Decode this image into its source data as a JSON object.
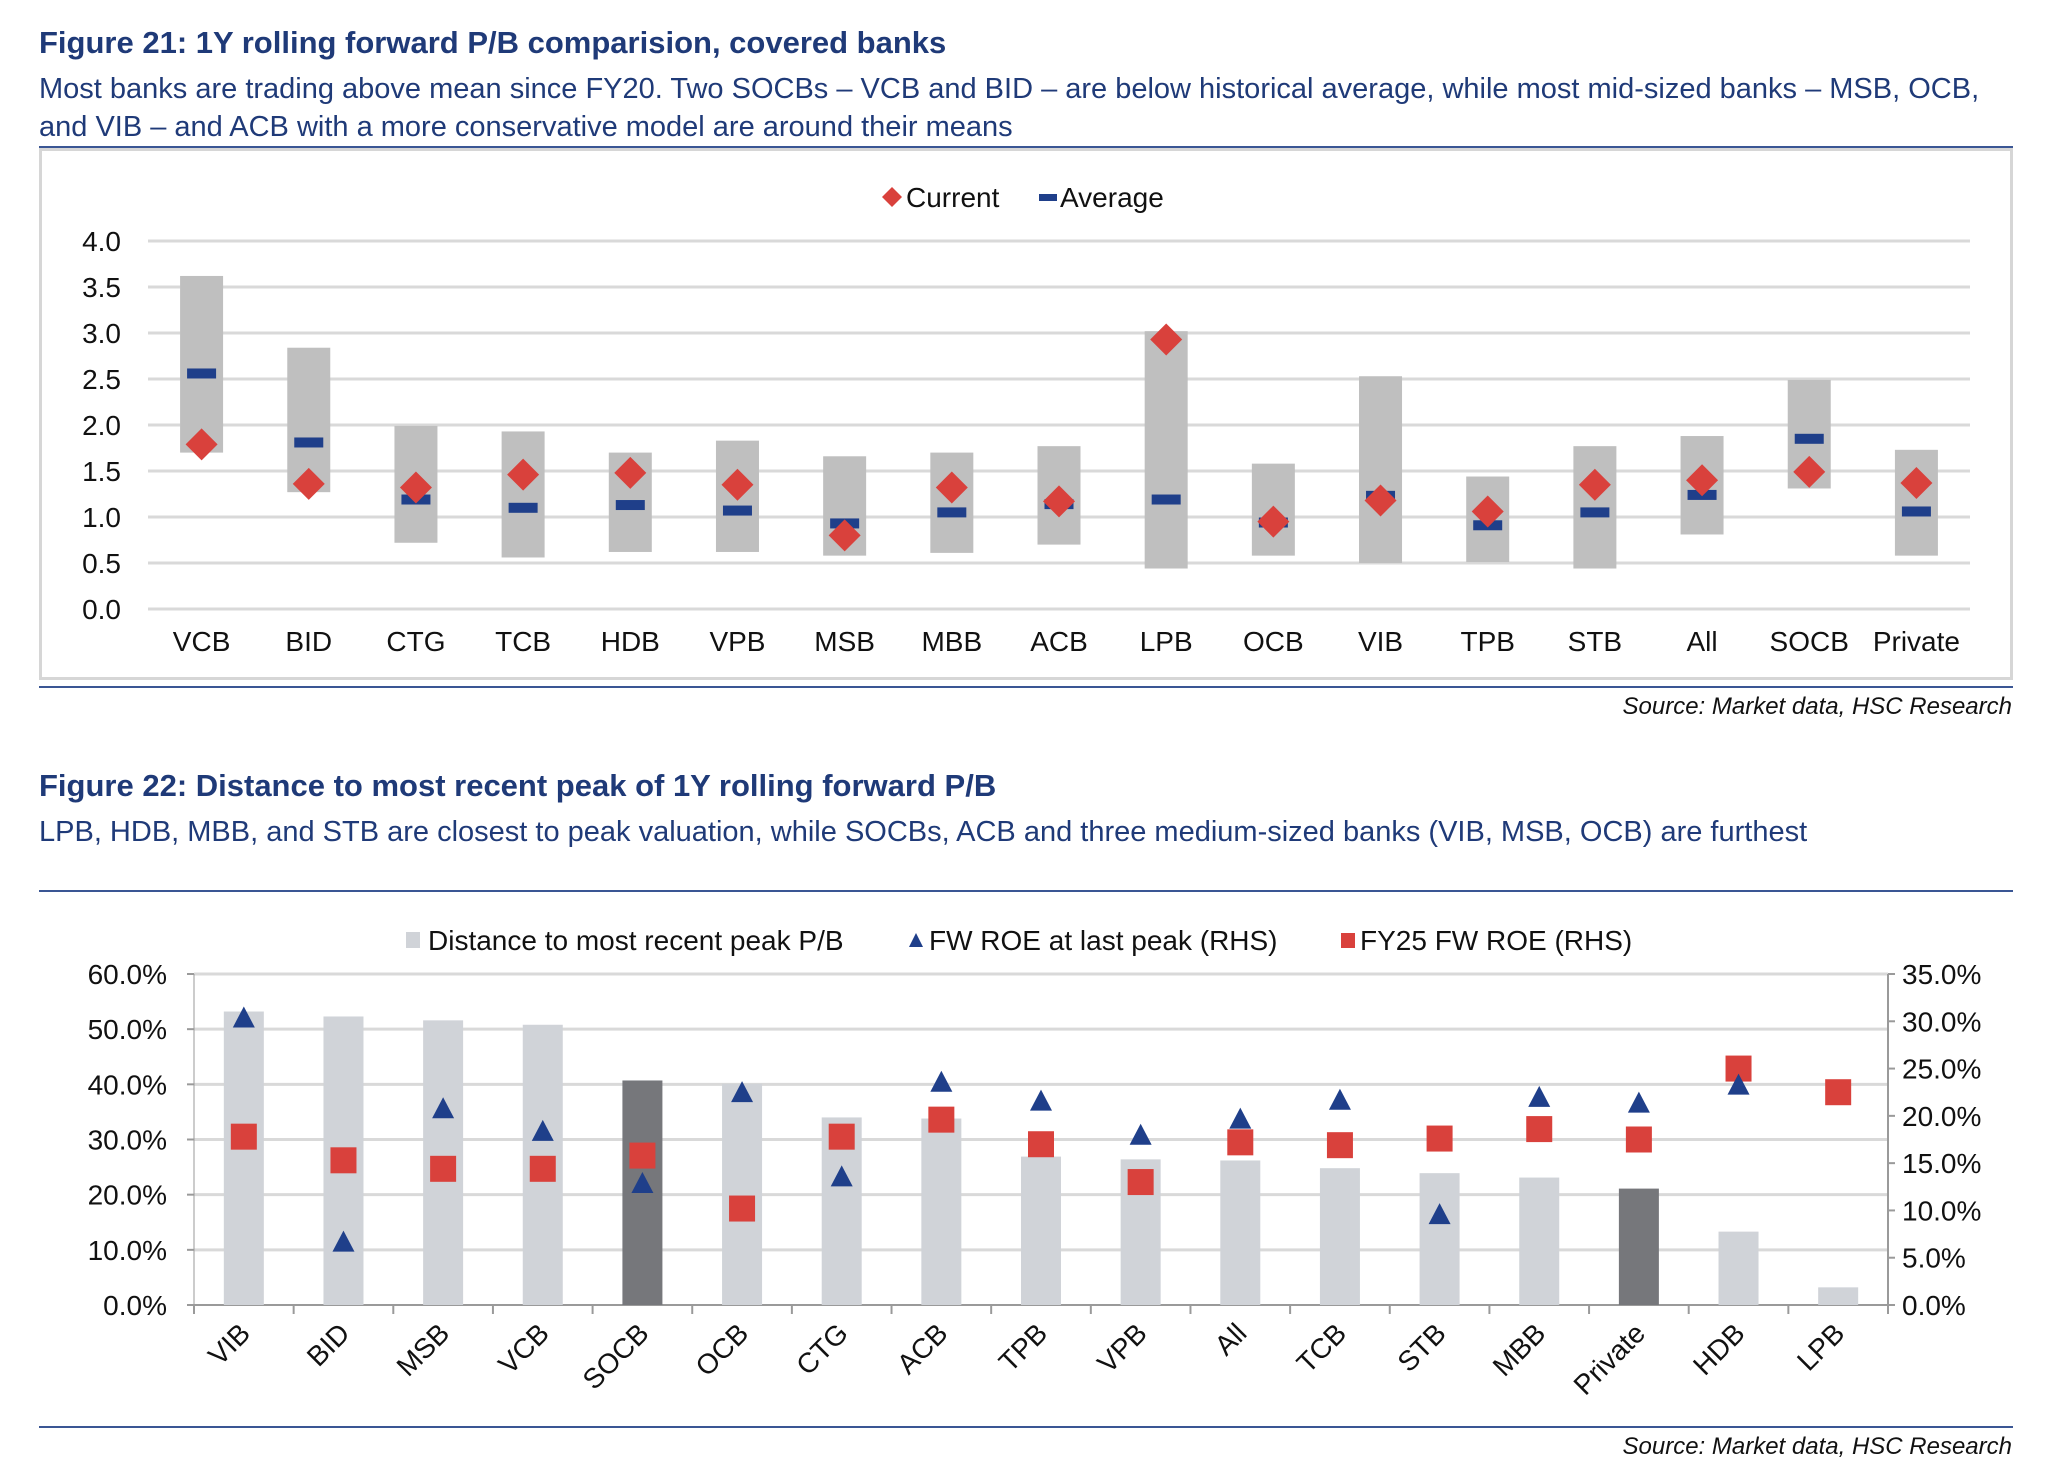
{
  "figure21": {
    "title": "Figure 21: 1Y rolling forward P/B comparision, covered banks",
    "subtitle": "Most banks are trading above mean since FY20. Two SOCBs – VCB and BID – are below historical average, while most mid-sized banks – MSB, OCB, and VIB – and ACB with a more conservative model are around their means",
    "source": "Source: Market data, HSC Research"
  },
  "figure22": {
    "title": "Figure 22: Distance to most recent peak of 1Y rolling forward P/B",
    "subtitle": "LPB, HDB, MBB, and STB are closest to peak valuation, while SOCBs, ACB and three medium-sized banks (VIB, MSB, OCB) are furthest",
    "source": "Source: Market data, HSC Research"
  },
  "colors": {
    "title": "#1f3a78",
    "current": "#d9413c",
    "average": "#1f3f8a",
    "range_bar": "#bfbfbf",
    "distance_bar": "#d0d3d8",
    "distance_bar_group": "#76777b",
    "roe_peak": "#1f3f8a",
    "roe_fy25": "#d9413c"
  },
  "chart_data": [
    {
      "type": "bar",
      "subtype": "floating-range with markers",
      "title": "1Y rolling forward P/B comparision, covered banks",
      "categories": [
        "VCB",
        "BID",
        "CTG",
        "TCB",
        "HDB",
        "VPB",
        "MSB",
        "MBB",
        "ACB",
        "LPB",
        "OCB",
        "VIB",
        "TPB",
        "STB",
        "All",
        "SOCB",
        "Private"
      ],
      "ylim": [
        0,
        4.0
      ],
      "yticks": [
        "0.0",
        "0.5",
        "1.0",
        "1.5",
        "2.0",
        "2.5",
        "3.0",
        "3.5",
        "4.0"
      ],
      "grid": true,
      "legend": {
        "position": "top-center",
        "entries": [
          "Current",
          "Average"
        ]
      },
      "series": [
        {
          "name": "Range high",
          "values": [
            3.62,
            2.84,
            1.99,
            1.93,
            1.7,
            1.83,
            1.66,
            1.7,
            1.77,
            3.02,
            1.58,
            2.53,
            1.44,
            1.77,
            1.88,
            2.49,
            1.73
          ]
        },
        {
          "name": "Range low",
          "values": [
            1.7,
            1.27,
            0.72,
            0.56,
            0.62,
            0.62,
            0.58,
            0.61,
            0.7,
            0.44,
            0.58,
            0.5,
            0.51,
            0.44,
            0.81,
            1.31,
            0.58
          ]
        },
        {
          "name": "Average",
          "values": [
            2.56,
            1.81,
            1.19,
            1.1,
            1.13,
            1.07,
            0.93,
            1.05,
            1.14,
            1.19,
            0.94,
            1.23,
            0.91,
            1.05,
            1.24,
            1.85,
            1.06
          ]
        },
        {
          "name": "Current",
          "values": [
            1.79,
            1.36,
            1.32,
            1.46,
            1.48,
            1.35,
            0.8,
            1.32,
            1.17,
            2.93,
            0.95,
            1.18,
            1.06,
            1.35,
            1.4,
            1.49,
            1.37
          ]
        }
      ]
    },
    {
      "type": "bar",
      "subtype": "bar with secondary-axis markers",
      "title": "Distance to most recent peak of 1Y rolling forward P/B",
      "categories": [
        "VIB",
        "BID",
        "MSB",
        "VCB",
        "SOCB",
        "OCB",
        "CTG",
        "ACB",
        "TPB",
        "VPB",
        "All",
        "TCB",
        "STB",
        "MBB",
        "Private",
        "HDB",
        "LPB"
      ],
      "highlighted_categories": [
        "SOCB",
        "Private"
      ],
      "ylim": [
        0,
        60
      ],
      "yticks": [
        "0.0%",
        "10.0%",
        "20.0%",
        "30.0%",
        "40.0%",
        "50.0%",
        "60.0%"
      ],
      "y2lim": [
        0,
        35
      ],
      "y2ticks": [
        "0.0%",
        "5.0%",
        "10.0%",
        "15.0%",
        "20.0%",
        "25.0%",
        "30.0%",
        "35.0%"
      ],
      "grid": true,
      "legend": {
        "position": "top-center",
        "entries": [
          "Distance to most recent peak P/B",
          "FW ROE at last peak (RHS)",
          "FY25 FW ROE (RHS)"
        ]
      },
      "series": [
        {
          "name": "Distance to most recent peak P/B",
          "axis": "left",
          "values": [
            53.2,
            52.3,
            51.6,
            50.8,
            40.7,
            40.1,
            34.0,
            33.8,
            26.9,
            26.4,
            26.2,
            24.8,
            23.9,
            23.1,
            21.1,
            13.3,
            3.2
          ]
        },
        {
          "name": "FW ROE at last peak (RHS)",
          "axis": "right",
          "values": [
            30.3,
            6.6,
            20.7,
            18.3,
            12.8,
            22.4,
            13.5,
            23.5,
            21.5,
            17.9,
            19.6,
            21.6,
            9.5,
            21.9,
            21.3,
            23.2,
            null
          ]
        },
        {
          "name": "FY25 FW ROE (RHS)",
          "axis": "right",
          "values": [
            17.8,
            15.3,
            14.4,
            14.4,
            15.8,
            10.2,
            17.8,
            19.6,
            17.0,
            13.0,
            17.2,
            16.9,
            17.6,
            18.6,
            17.5,
            25.0,
            22.5
          ]
        }
      ]
    }
  ]
}
